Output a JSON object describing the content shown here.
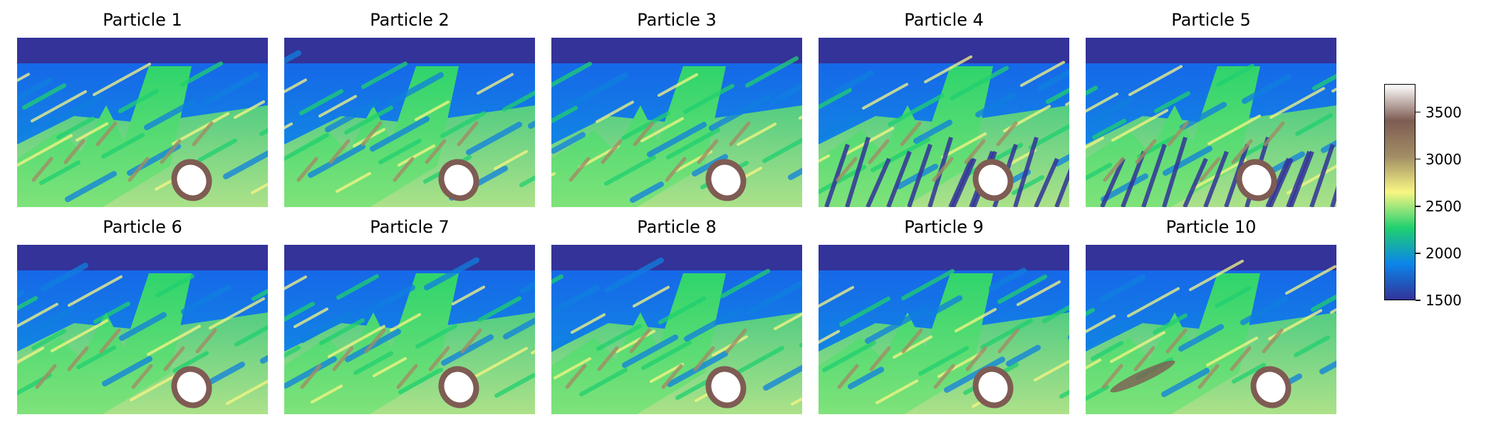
{
  "chart_data": {
    "type": "heatmap",
    "panels": [
      {
        "title": "Particle 1",
        "variant": 1
      },
      {
        "title": "Particle 2",
        "variant": 1
      },
      {
        "title": "Particle 3",
        "variant": 1
      },
      {
        "title": "Particle 4",
        "variant": 2
      },
      {
        "title": "Particle 5",
        "variant": 3
      },
      {
        "title": "Particle 6",
        "variant": 1
      },
      {
        "title": "Particle 7",
        "variant": 1
      },
      {
        "title": "Particle 8",
        "variant": 1
      },
      {
        "title": "Particle 9",
        "variant": 1
      },
      {
        "title": "Particle 10",
        "variant": 4
      }
    ],
    "layout": {
      "rows": 2,
      "cols": 5
    },
    "colorbar": {
      "vmin": 1500,
      "vmax": 3800,
      "ticks": [
        1500,
        2000,
        2500,
        3000,
        3500
      ],
      "tick_labels": [
        "1500",
        "2000",
        "2500",
        "3000",
        "3500"
      ],
      "colormap": "terrain",
      "colors": [
        "#333399",
        "#0b85ea",
        "#1fd06f",
        "#f9f683",
        "#a18d65",
        "#7e5c53",
        "#ffffff"
      ]
    },
    "axes_visible": false,
    "grid": false
  }
}
